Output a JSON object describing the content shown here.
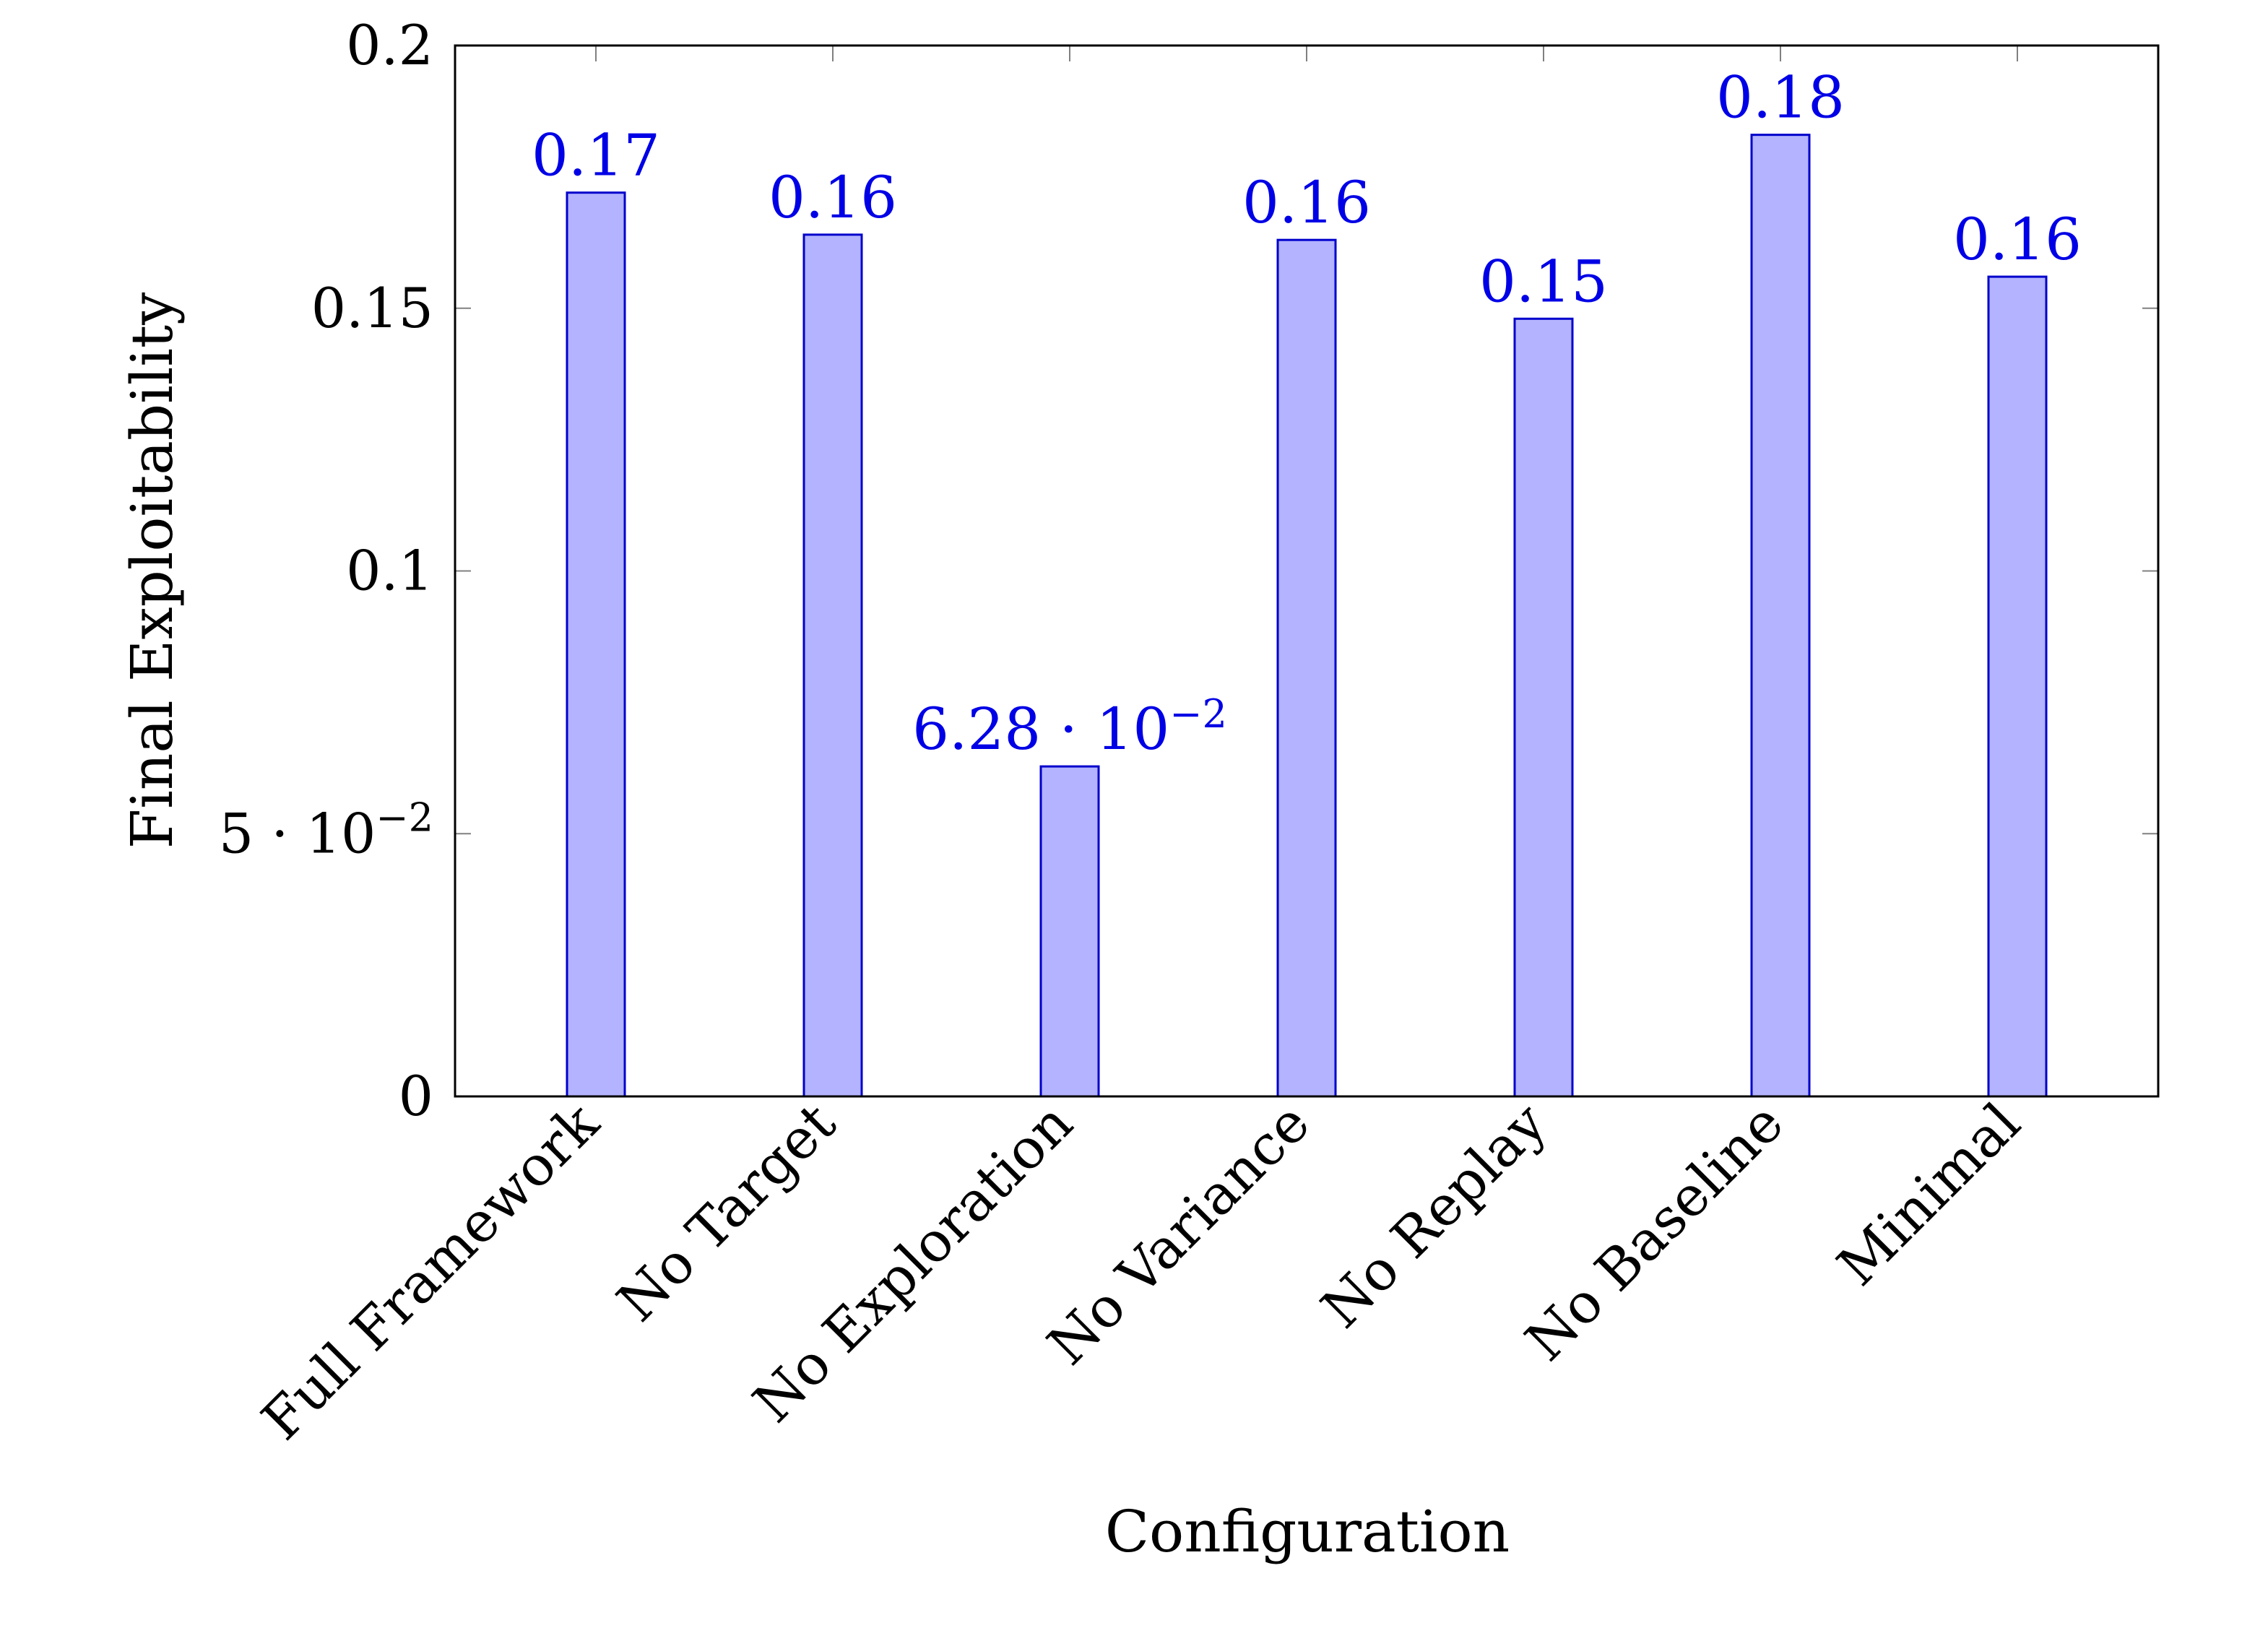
{
  "chart_data": {
    "type": "bar",
    "title": "",
    "xlabel": "Configuration",
    "ylabel": "Final Exploitability",
    "categories": [
      "Full Framework",
      "No Target",
      "No Exploration",
      "No Variance",
      "No Replay",
      "No Baseline",
      "Minimal"
    ],
    "values": [
      0.172,
      0.164,
      0.0628,
      0.163,
      0.148,
      0.183,
      0.156
    ],
    "data_labels": [
      {
        "text": "0.17"
      },
      {
        "text": "0.16"
      },
      {
        "text": "6.28 · 10",
        "exp": "−2"
      },
      {
        "text": "0.16"
      },
      {
        "text": "0.15"
      },
      {
        "text": "0.18"
      },
      {
        "text": "0.16"
      }
    ],
    "ylim": [
      0,
      0.2
    ],
    "yticks": [
      {
        "value": 0,
        "text": "0"
      },
      {
        "value": 0.05,
        "text": "5 · 10",
        "exp": "−2"
      },
      {
        "value": 0.1,
        "text": "0.1"
      },
      {
        "value": 0.15,
        "text": "0.15"
      },
      {
        "value": 0.2,
        "text": "0.2"
      }
    ],
    "grid": false,
    "legend": "none"
  },
  "colors": {
    "bar_fill": "#b3b3ff",
    "bar_stroke": "#0000cc",
    "data_label": "#0000e6",
    "axis": "#000000",
    "tick": "#808080"
  }
}
